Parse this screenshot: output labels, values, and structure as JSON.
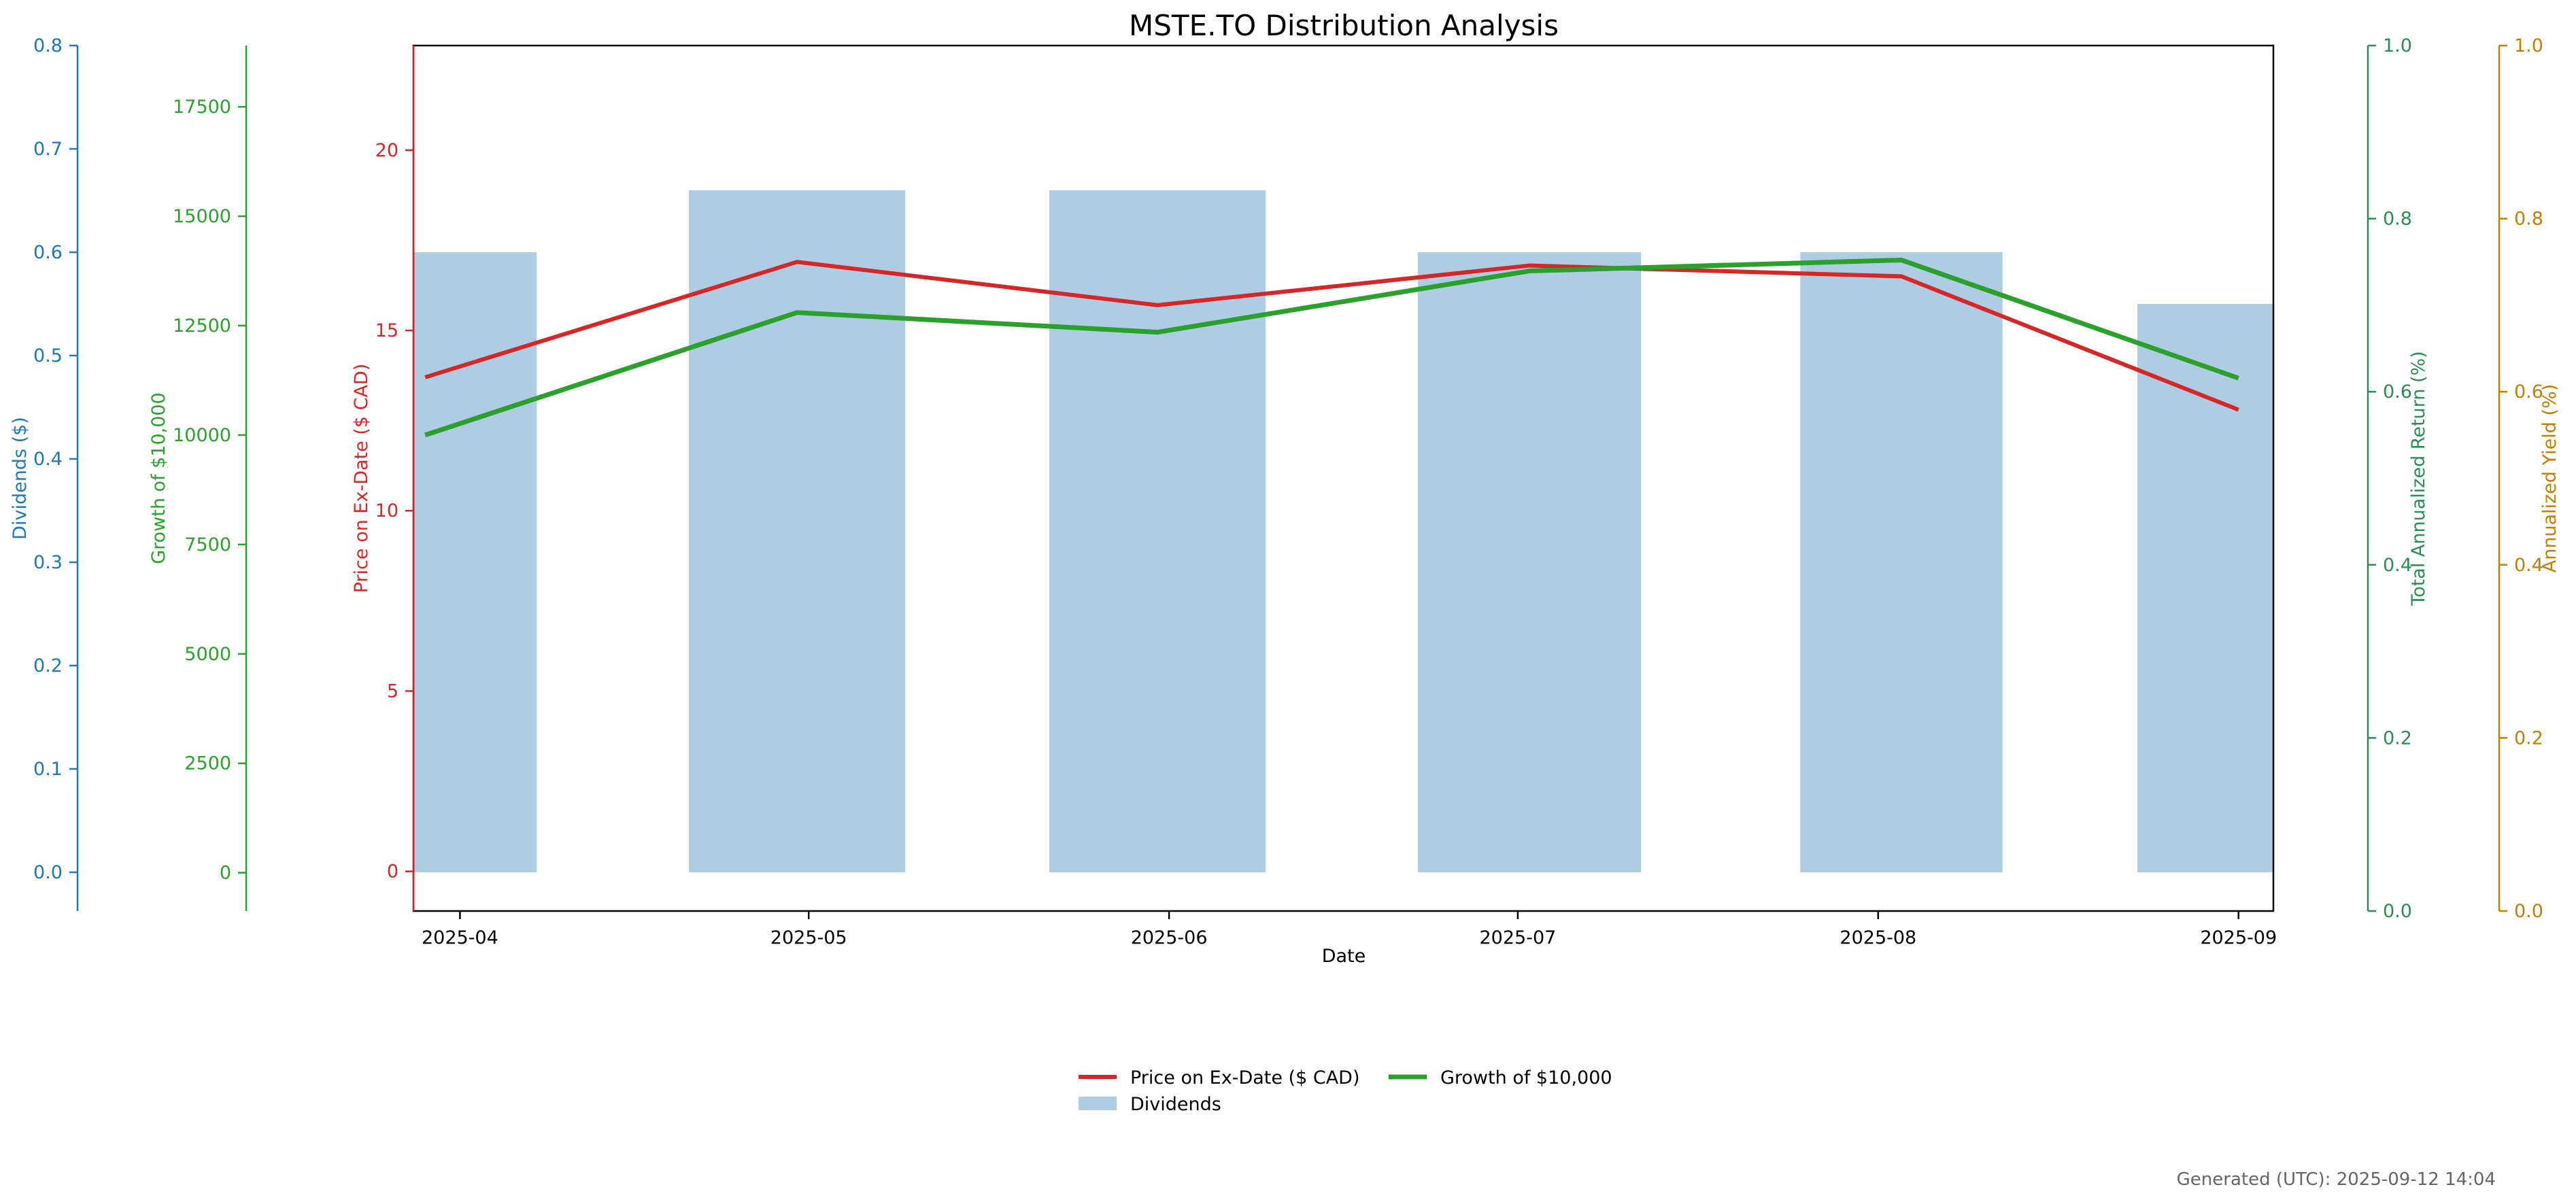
{
  "chart_data": {
    "type": "bar",
    "title": "MSTE.TO Distribution Analysis",
    "xlabel": "Date",
    "x_ticks": [
      "2025-04",
      "2025-05",
      "2025-06",
      "2025-07",
      "2025-08",
      "2025-09"
    ],
    "xlim": [
      "2025-03-28",
      "2025-09-04"
    ],
    "categories": [
      "2025-03-29",
      "2025-04-30",
      "2025-05-31",
      "2025-07-02",
      "2025-08-03",
      "2025-09-01"
    ],
    "dividends": {
      "name": "Dividends",
      "color": "#aecde3",
      "values": [
        0.6,
        0.66,
        0.66,
        0.6,
        0.6,
        0.55
      ]
    },
    "price": {
      "name": "Price on Ex-Date ($ CAD)",
      "color": "#d62728",
      "values": [
        13.7,
        16.9,
        15.7,
        16.8,
        16.5,
        12.8
      ]
    },
    "growth": {
      "name": "Growth of $10,000",
      "color": "#2ca02c",
      "values": [
        10000,
        12800,
        12350,
        13750,
        14000,
        11300
      ]
    },
    "axes": {
      "dividends": {
        "label": "Dividends ($)",
        "color": "#1f77b4",
        "ylim": [
          -0.0375,
          0.8
        ],
        "ticks": [
          "0.0",
          "0.1",
          "0.2",
          "0.3",
          "0.4",
          "0.5",
          "0.6",
          "0.7",
          "0.8"
        ]
      },
      "growth": {
        "label": "Growth of $10,000",
        "color": "#2ca02c",
        "ylim": [
          -875,
          18900
        ],
        "ticks": [
          "0",
          "2500",
          "5000",
          "7500",
          "10000",
          "12500",
          "15000",
          "17500"
        ]
      },
      "price": {
        "label": "Price on Ex-Date ($ CAD)",
        "color": "#d62728",
        "ylim": [
          -1.1,
          22.9
        ],
        "ticks": [
          "0",
          "5",
          "10",
          "15",
          "20"
        ]
      },
      "total_return": {
        "label": "Total Annualized Return (%)",
        "color": "#2e8b57",
        "ylim": [
          0,
          1
        ],
        "ticks": [
          "0.0",
          "0.2",
          "0.4",
          "0.6",
          "0.8",
          "1.0"
        ]
      },
      "yield": {
        "label": "Annualized Yield (%)",
        "color": "#c07f00",
        "ylim": [
          0,
          1
        ],
        "ticks": [
          "0.0",
          "0.2",
          "0.4",
          "0.6",
          "0.8",
          "1.0"
        ]
      }
    },
    "legend": {
      "placement": "bottom-center",
      "entries": [
        "Price on Ex-Date ($ CAD)",
        "Growth of $10,000",
        "Dividends"
      ]
    },
    "grid": false
  },
  "footer": "Generated (UTC): 2025-09-12 14:04"
}
